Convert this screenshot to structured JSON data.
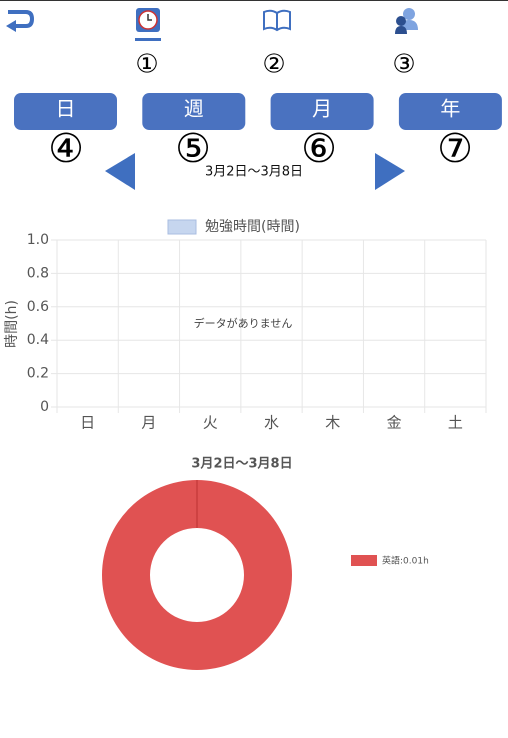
{
  "markers": [
    "①",
    "②",
    "③",
    "④",
    "⑤",
    "⑥",
    "⑦"
  ],
  "tabs": [
    "日",
    "週",
    "月",
    "年"
  ],
  "date_range": "3月2日～3月8日",
  "bar_chart": {
    "type": "bar",
    "categories": [
      "日",
      "月",
      "火",
      "水",
      "木",
      "金",
      "土"
    ],
    "series": [
      {
        "name": "勉強時間(時間)",
        "color": "#c6d6ef",
        "values": [
          null,
          null,
          null,
          null,
          null,
          null,
          null
        ]
      }
    ],
    "ylabel": "時間(h)",
    "ylim": [
      0,
      1
    ],
    "yticks": [
      0,
      0.2,
      0.4,
      0.6,
      0.8,
      {
        "value": 1,
        "label": "1.0"
      }
    ],
    "grid": true,
    "message": "データがありません"
  },
  "donut_chart": {
    "type": "pie",
    "title": "3月2日～3月8日",
    "categories": [
      "英語:0.01h"
    ],
    "values": [
      0.01
    ],
    "colors": [
      "#e05252"
    ],
    "legend": "right"
  }
}
